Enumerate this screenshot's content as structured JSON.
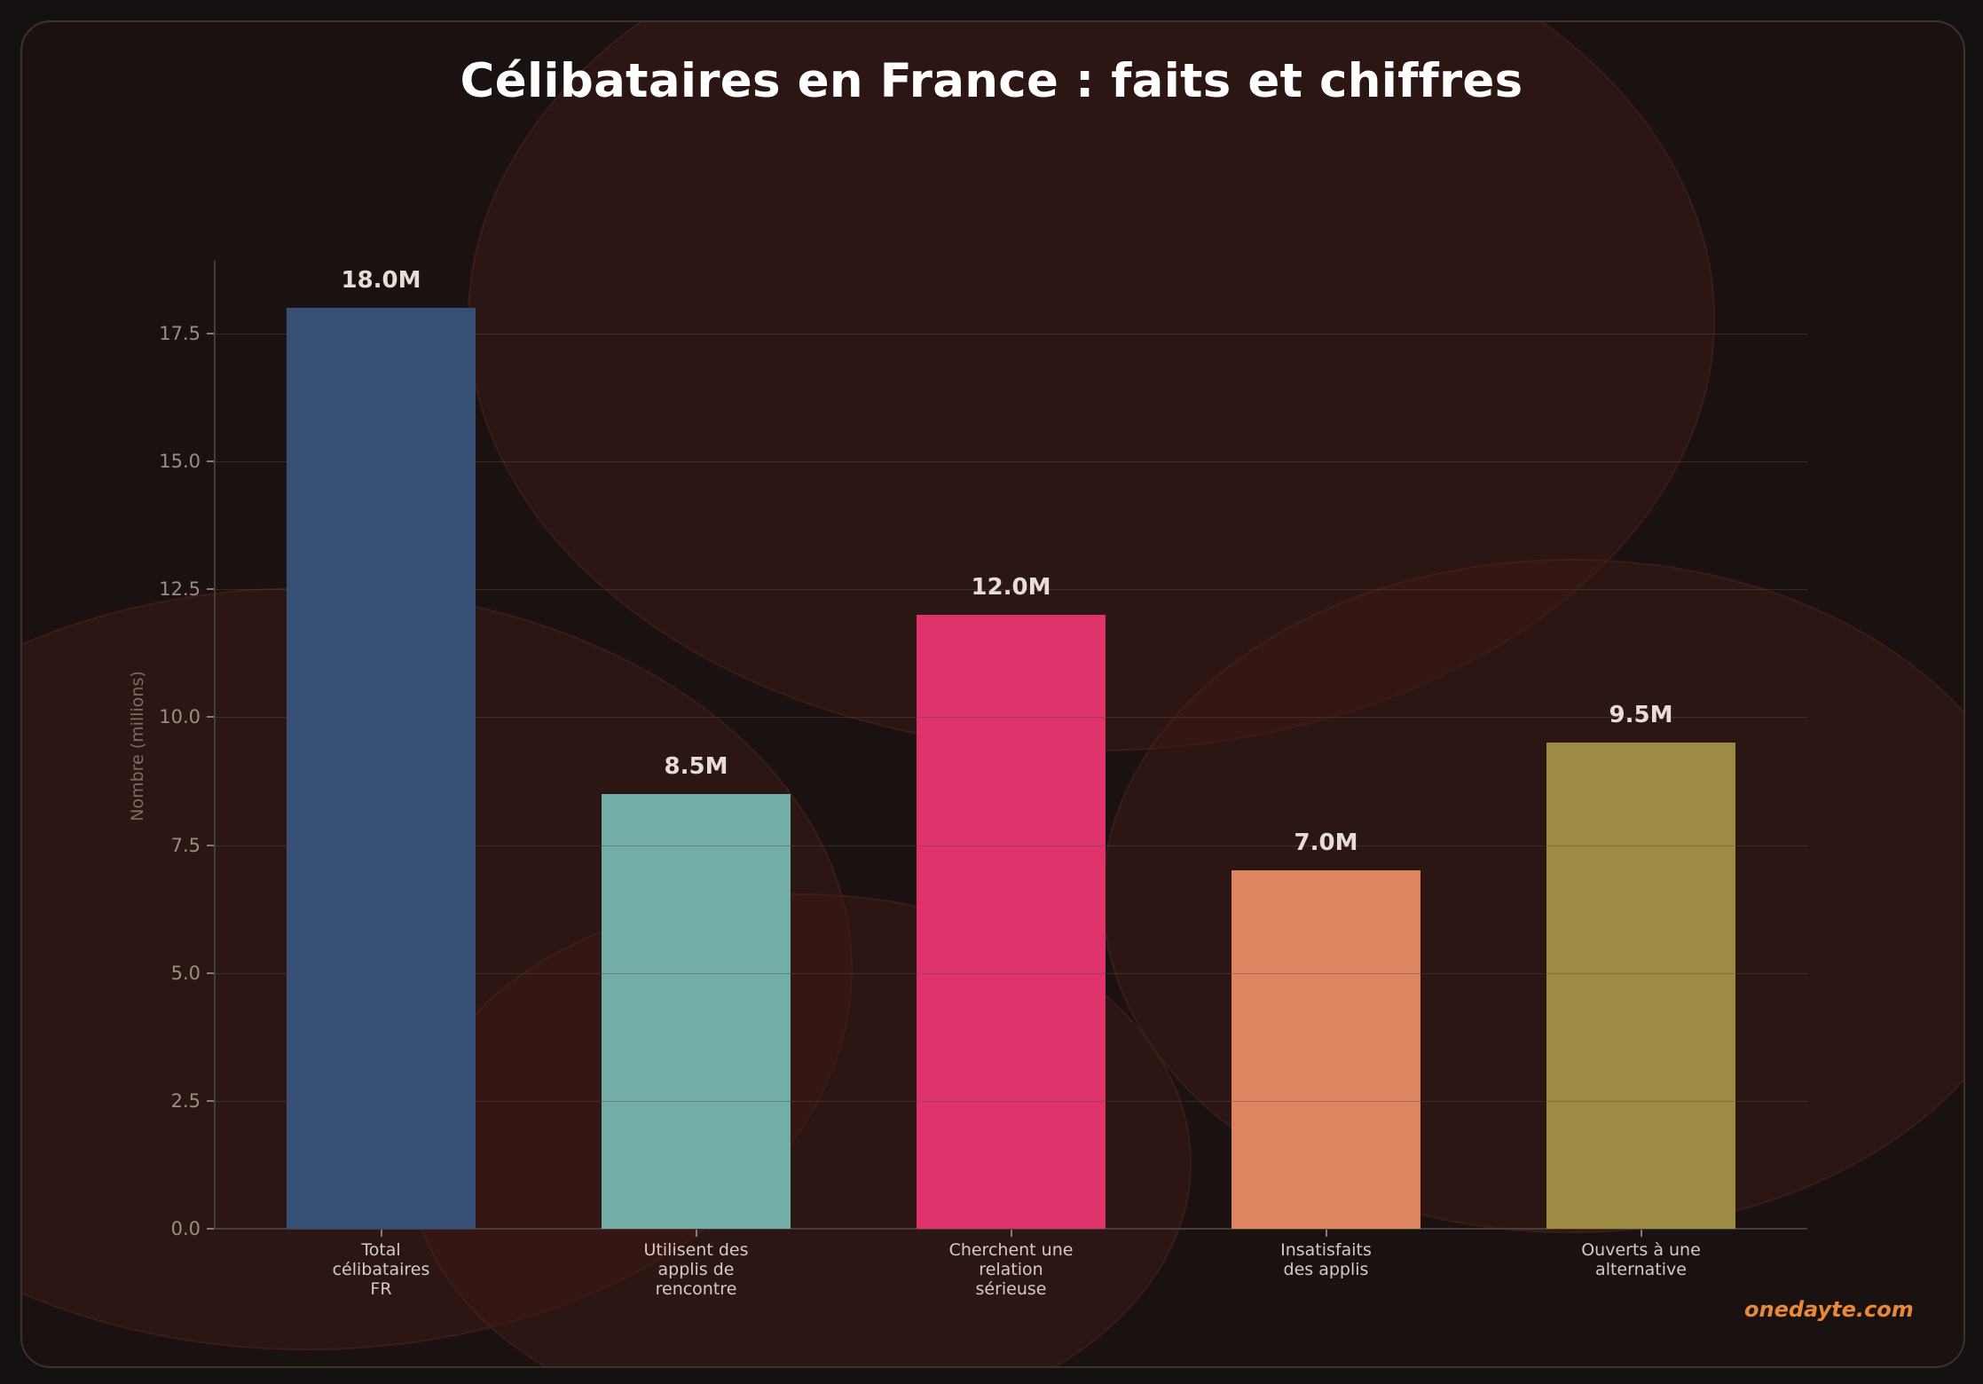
{
  "title": "Célibataires en France : faits et chiffres",
  "watermark": "onedayte.com",
  "colors": {
    "background": "#141110",
    "card": "#1a1210",
    "accent": "#e8893a",
    "bars": [
      "#354f75",
      "#72ada8",
      "#df346b",
      "#dd8461",
      "#9d8b43"
    ]
  },
  "chart_data": {
    "type": "bar",
    "title": "Célibataires en France : faits et chiffres",
    "xlabel": "",
    "ylabel": "Nombre (millions)",
    "ylim": [
      0,
      18.9
    ],
    "yticks": [
      0.0,
      2.5,
      5.0,
      7.5,
      10.0,
      12.5,
      15.0,
      17.5
    ],
    "ytick_labels": [
      "0.0",
      "2.5",
      "5.0",
      "7.5",
      "10.0",
      "12.5",
      "15.0",
      "17.5"
    ],
    "grid": true,
    "legend": null,
    "categories": [
      "Total célibataires FR",
      "Utilisent des applis de rencontre",
      "Cherchent une relation sérieuse",
      "Insatisfaits des applis",
      "Ouverts à une alternative"
    ],
    "category_lines": [
      [
        "Total",
        "célibataires",
        "FR"
      ],
      [
        "Utilisent des",
        "applis de",
        "rencontre"
      ],
      [
        "Cherchent une",
        "relation",
        "sérieuse"
      ],
      [
        "Insatisfaits",
        "des applis"
      ],
      [
        "Ouverts à une",
        "alternative"
      ]
    ],
    "values": [
      18.0,
      8.5,
      12.0,
      7.0,
      9.5
    ],
    "value_labels": [
      "18.0M",
      "8.5M",
      "12.0M",
      "7.0M",
      "9.5M"
    ],
    "colors": [
      "#354f75",
      "#72ada8",
      "#df346b",
      "#dd8461",
      "#9d8b43"
    ]
  }
}
